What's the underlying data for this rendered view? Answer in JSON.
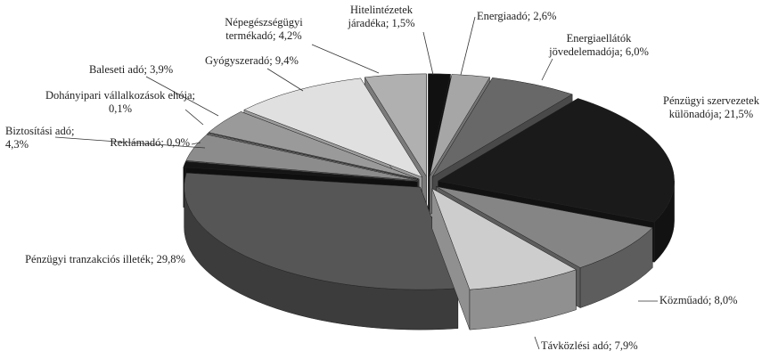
{
  "chart_data": {
    "type": "pie3d",
    "categories": [
      "Hitelintézetek járadéka",
      "Energiaadó",
      "Energiaellátók jövedelemadója",
      "Pénzügyi szervezetek különadója",
      "Közműadó",
      "Távközlési adó",
      "Pénzügyi tranzakciós illeték",
      "Reklámadó",
      "Biztosítási adó",
      "Dohányipari vállalkozások ehója",
      "Baleseti adó",
      "Gyógyszeradó",
      "Népegészségügyi termékadó"
    ],
    "values": [
      1.5,
      2.6,
      6.0,
      21.5,
      8.0,
      7.9,
      29.8,
      0.9,
      4.3,
      0.1,
      3.9,
      9.4,
      4.2
    ],
    "value_labels": [
      "1,5%",
      "2,6%",
      "6,0%",
      "21,5%",
      "8,0%",
      "7,9%",
      "29,8%",
      "0,9%",
      "4,3%",
      "0,1%",
      "3,9%",
      "9,4%",
      "4,2%"
    ],
    "label_separator": "; ",
    "colors": [
      "#111111",
      "#a6a6a6",
      "#686868",
      "#1a1a1a",
      "#858585",
      "#cdcdcd",
      "#565656",
      "#151515",
      "#8c8c8c",
      "#d8d8d8",
      "#9a9a9a",
      "#e0e0e0",
      "#b0b0b0"
    ]
  }
}
